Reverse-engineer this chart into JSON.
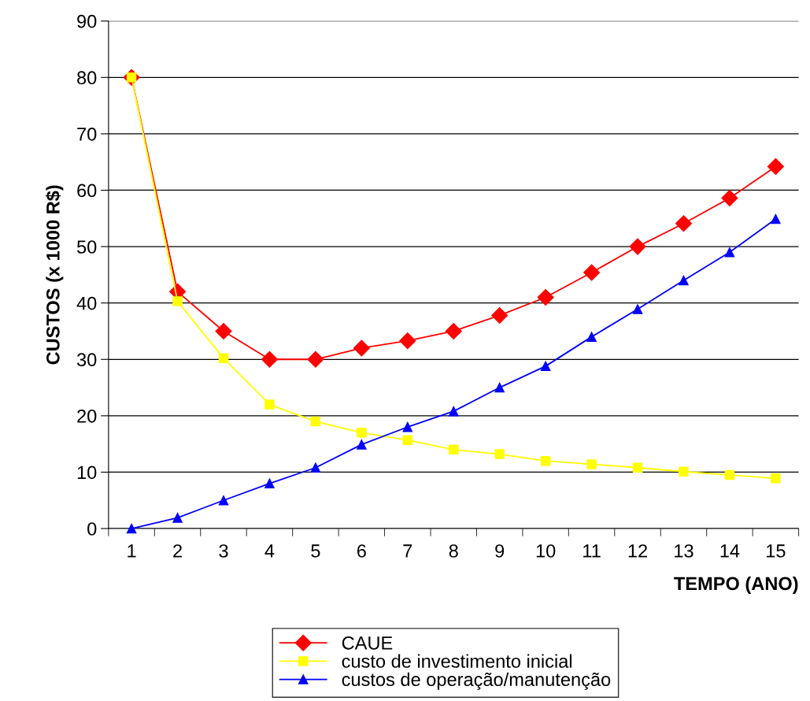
{
  "chart_data": {
    "type": "line",
    "xlabel": "TEMPO (ANO)",
    "ylabel": "CUSTOS (x 1000 R$)",
    "categories": [
      "1",
      "2",
      "3",
      "4",
      "5",
      "6",
      "7",
      "8",
      "9",
      "10",
      "11",
      "12",
      "13",
      "14",
      "15"
    ],
    "series": [
      {
        "name": "CAUE",
        "color": "#ff0000",
        "marker": "diamond",
        "values": [
          80,
          42,
          35,
          30,
          30,
          32,
          33.3,
          35,
          37.8,
          41,
          45.4,
          50,
          54.1,
          58.6,
          64.2
        ]
      },
      {
        "name": "custo de investimento inicial",
        "color": "#ffff00",
        "marker": "square",
        "values": [
          80,
          40.3,
          30.2,
          22,
          19,
          17,
          15.7,
          14,
          13.2,
          12,
          11.4,
          10.8,
          10.1,
          9.5,
          8.9
        ]
      },
      {
        "name": "custos de operação/manutenção",
        "color": "#0000ff",
        "marker": "triangle",
        "values": [
          0,
          1.9,
          5,
          8,
          10.8,
          14.9,
          18,
          20.8,
          25,
          28.8,
          34,
          38.9,
          44,
          49,
          54.9
        ]
      }
    ],
    "ylim": [
      0,
      90
    ],
    "yticks": [
      0,
      10,
      20,
      30,
      40,
      50,
      60,
      70,
      80,
      90
    ],
    "grid": "y",
    "legend": "bottom",
    "line_style": "solid"
  }
}
